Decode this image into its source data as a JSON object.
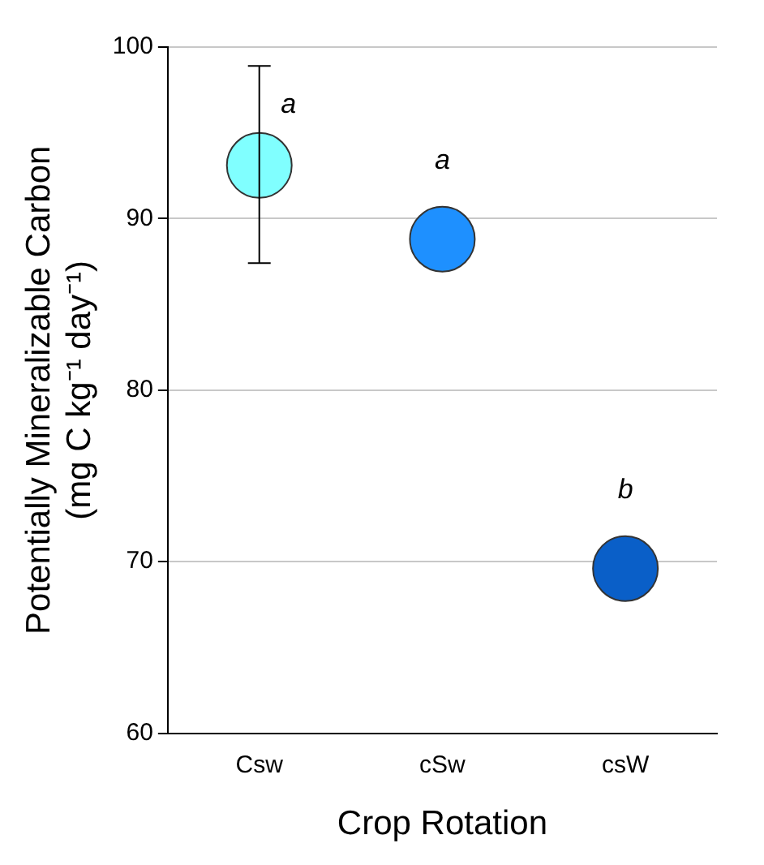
{
  "chart_data": {
    "type": "scatter",
    "xlabel": "Crop Rotation",
    "ylabel": "Potentially Mineralizable Carbon\n(mg C kg⁻¹ day⁻¹)",
    "categories": [
      "Csw",
      "cSw",
      "csW"
    ],
    "values": [
      93.1,
      88.8,
      69.6
    ],
    "colors": [
      "#80ffff",
      "#1e90ff",
      "#0a5fc8"
    ],
    "errors": [
      [
        87.4,
        98.9
      ],
      null,
      null
    ],
    "marker": "circle",
    "ylim": [
      60,
      100
    ],
    "yticks": [
      60,
      70,
      80,
      90,
      100
    ],
    "grid": "y",
    "annotations": [
      {
        "text": "a",
        "x": "Csw",
        "y": 93.1
      },
      {
        "text": "a",
        "x": "cSw",
        "y": 88.8
      },
      {
        "text": "b",
        "x": "csW",
        "y": 69.6
      }
    ]
  }
}
